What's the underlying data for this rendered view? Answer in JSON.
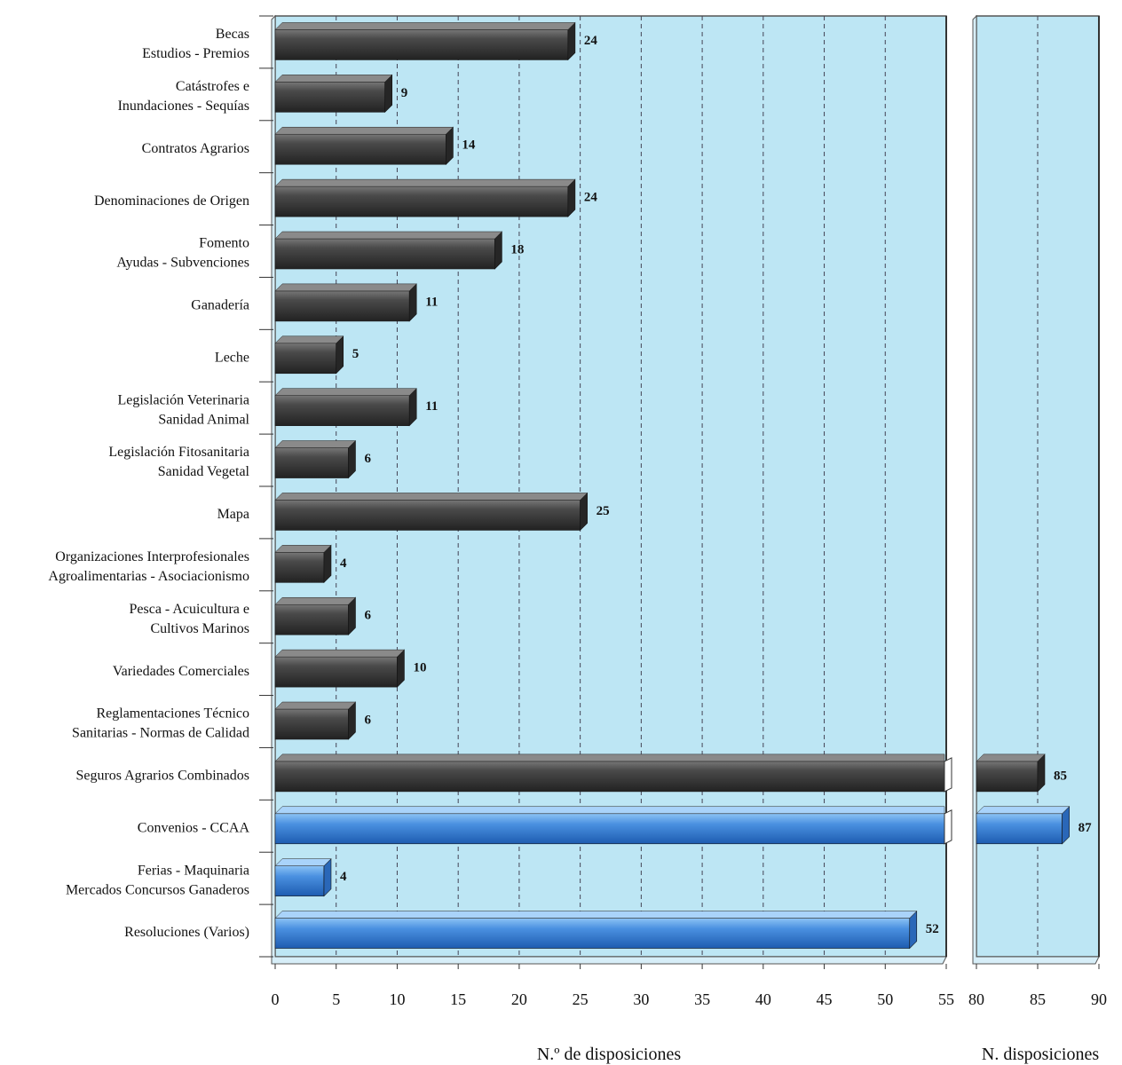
{
  "chart_data": {
    "type": "bar",
    "orientation": "horizontal",
    "broken_axis": true,
    "categories": [
      [
        "Becas",
        "Estudios - Premios"
      ],
      [
        "Catástrofes e",
        "Inundaciones - Sequías"
      ],
      [
        "Contratos Agrarios"
      ],
      [
        "Denominaciones de Origen"
      ],
      [
        "Fomento",
        "Ayudas - Subvenciones"
      ],
      [
        "Ganadería"
      ],
      [
        "Leche"
      ],
      [
        "Legislación Veterinaria",
        "Sanidad Animal"
      ],
      [
        "Legislación Fitosanitaria",
        "Sanidad Vegetal"
      ],
      [
        "Mapa"
      ],
      [
        "Organizaciones Interprofesionales",
        "Agroalimentarias - Asociacionismo"
      ],
      [
        "Pesca - Acuicultura e",
        "Cultivos Marinos"
      ],
      [
        "Variedades Comerciales"
      ],
      [
        "Reglamentaciones Técnico",
        "Sanitarias - Normas de Calidad"
      ],
      [
        "Seguros Agrarios Combinados"
      ],
      [
        "Convenios - CCAA"
      ],
      [
        "Ferias - Maquinaria",
        "Mercados Concursos Ganaderos"
      ],
      [
        "Resoluciones (Varios)"
      ]
    ],
    "values": [
      24,
      9,
      14,
      24,
      18,
      11,
      5,
      11,
      6,
      25,
      4,
      6,
      10,
      6,
      85,
      87,
      4,
      52
    ],
    "value_labels": [
      "24",
      "9",
      "14",
      "24",
      "18",
      "11",
      "5",
      "11",
      "6",
      "25",
      "4",
      "6",
      "10",
      "6",
      "85",
      "87",
      "4",
      "52"
    ],
    "bar_colors": [
      "dark",
      "dark",
      "dark",
      "dark",
      "dark",
      "dark",
      "dark",
      "dark",
      "dark",
      "dark",
      "dark",
      "dark",
      "dark",
      "dark",
      "dark",
      "blue",
      "blue",
      "blue"
    ],
    "colors": {
      "dark": "#3f3f3f",
      "blue": "#3f86da",
      "plot_bg": "#bde6f4"
    },
    "left_panel": {
      "xlim": [
        0,
        55
      ],
      "ticks": [
        "0",
        "5",
        "10",
        "15",
        "20",
        "25",
        "30",
        "35",
        "40",
        "45",
        "50",
        "55"
      ]
    },
    "right_panel": {
      "xlim": [
        80,
        90
      ],
      "ticks": [
        "80",
        "85",
        "90"
      ]
    },
    "xlabel_left": "N.º de disposiciones",
    "xlabel_right": "N. disposiciones",
    "grid": "vertical-dashed"
  }
}
